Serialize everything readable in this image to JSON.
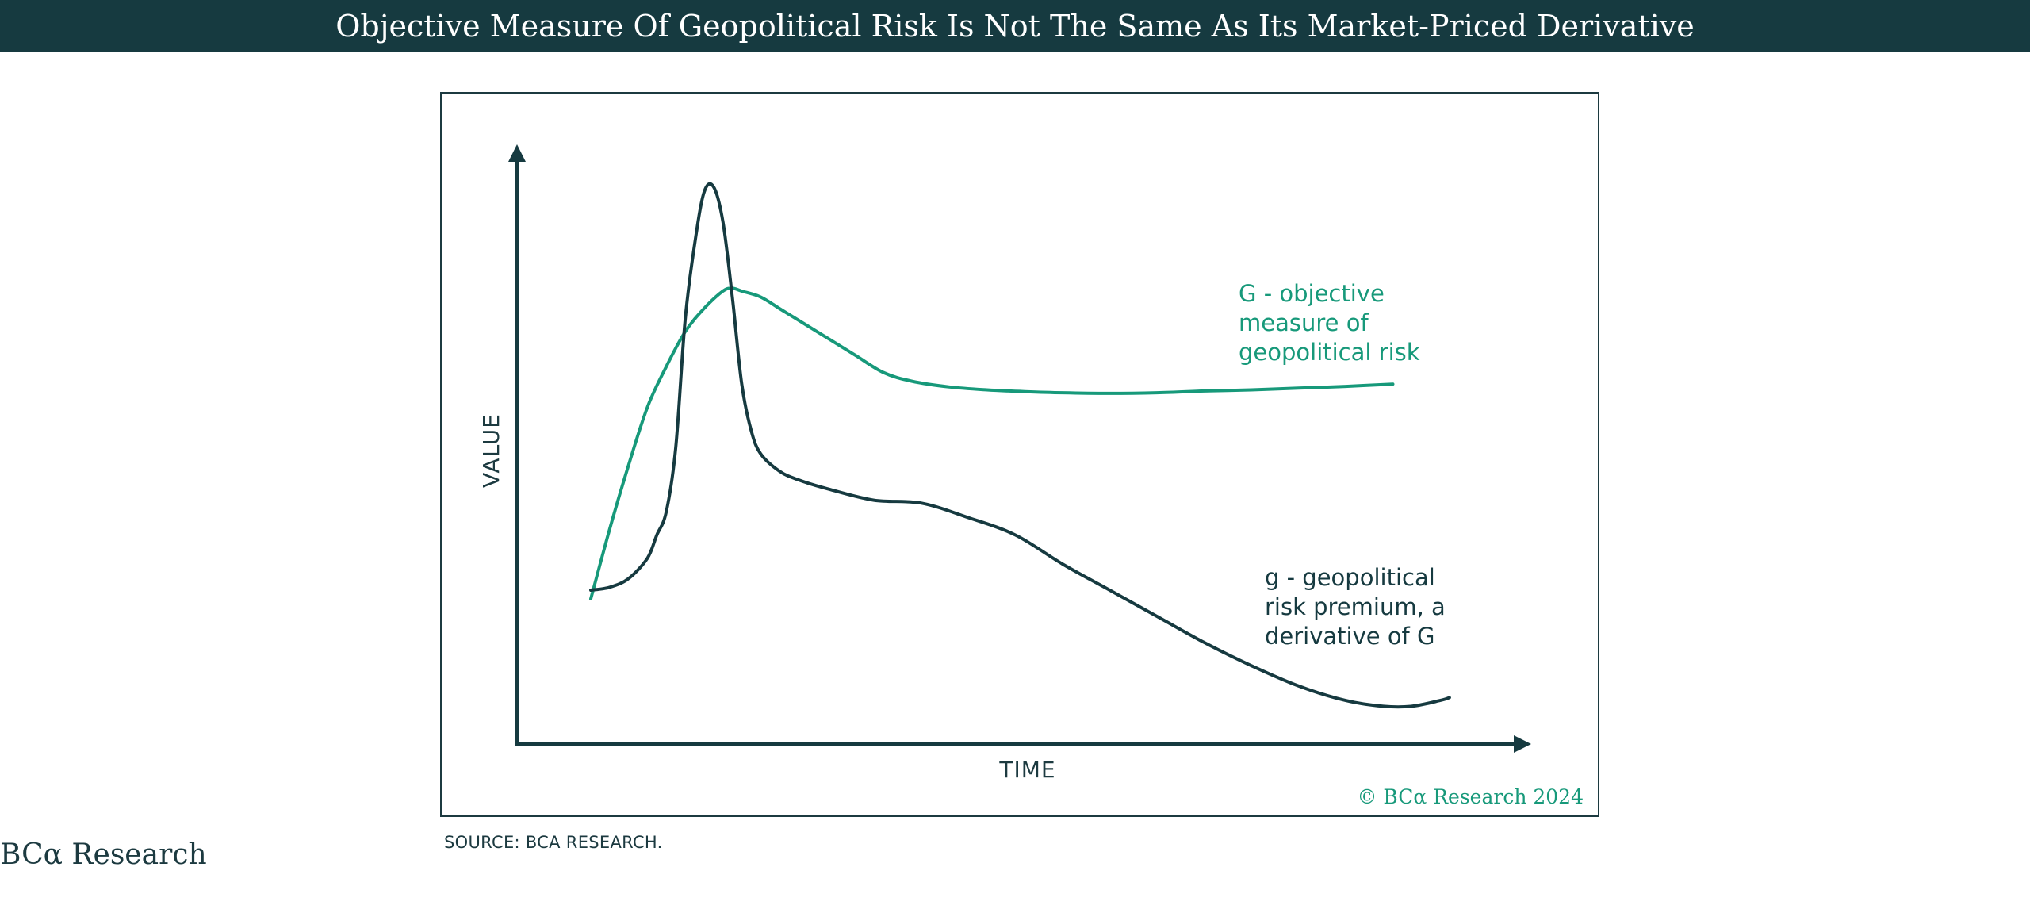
{
  "header": {
    "title": "Objective Measure Of Geopolitical Risk Is Not The Same As Its Market-Priced Derivative"
  },
  "footer": {
    "source": "SOURCE: BCA RESEARCH.",
    "brand": "BCα Research"
  },
  "colors": {
    "header_bg": "#163a40",
    "dark_series": "#163a40",
    "green_series": "#17997a"
  },
  "chart_data": {
    "type": "line",
    "title": "",
    "xlabel": "TIME",
    "ylabel": "VALUE",
    "xlim": [
      0,
      100
    ],
    "ylim": [
      0,
      100
    ],
    "grid": false,
    "legend": "none",
    "copyright": "© BCα Research 2024",
    "series": [
      {
        "name": "G - objective measure of geopolitical risk",
        "label_lines": [
          "G - objective",
          "measure of",
          "geopolitical risk"
        ],
        "color": "#17997a",
        "x": [
          0,
          2,
          4,
          6,
          8,
          10,
          12,
          14,
          15,
          16,
          18,
          20,
          22,
          25,
          28,
          31,
          34,
          38,
          42,
          46,
          50,
          55,
          60,
          65,
          70,
          75,
          80,
          85
        ],
        "y": [
          25,
          37,
          48,
          58,
          65,
          71,
          75,
          78,
          78.5,
          78,
          77,
          75,
          73,
          70,
          67,
          64,
          62.5,
          61.5,
          61,
          60.7,
          60.5,
          60.4,
          60.5,
          60.8,
          61,
          61.3,
          61.6,
          62
        ]
      },
      {
        "name": "g - geopolitical risk premium, a derivative of G",
        "label_lines": [
          "g - geopolitical",
          "risk premium, a",
          "derivative of G"
        ],
        "color": "#163a40",
        "x": [
          0,
          2,
          4,
          6,
          7,
          8,
          9,
          10,
          11,
          12,
          13,
          14,
          15,
          16,
          17,
          18,
          20,
          22,
          25,
          30,
          35,
          40,
          45,
          50,
          55,
          60,
          65,
          70,
          75,
          80,
          84,
          87,
          90,
          91
        ],
        "y": [
          26.5,
          27,
          28.5,
          32,
          36,
          40,
          51,
          73,
          86,
          95,
          96,
          90,
          77,
          62,
          54,
          50,
          47,
          45.5,
          44,
          42,
          41.5,
          39,
          36,
          31,
          26.5,
          22,
          17.5,
          13.5,
          10,
          7.5,
          6.5,
          6.5,
          7.5,
          8
        ]
      }
    ],
    "label_positions": [
      "upper-right",
      "lower-right"
    ]
  }
}
